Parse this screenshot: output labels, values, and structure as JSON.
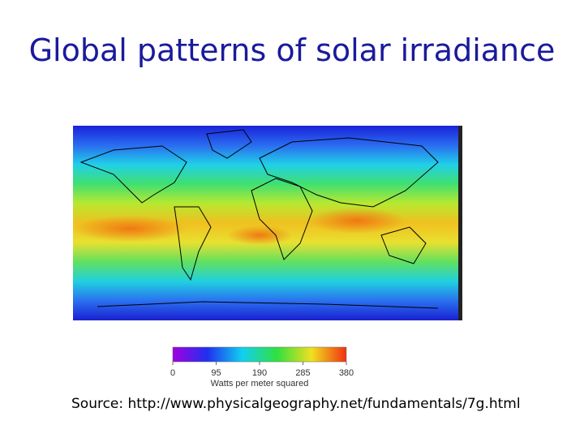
{
  "title": "Global patterns of solar irradiance",
  "colorbar": {
    "ticks": [
      0,
      95,
      190,
      285,
      380
    ],
    "label": "Watts per meter squared"
  },
  "source": "Source: http://www.physicalgeography.net/fundamentals/7g.html"
}
